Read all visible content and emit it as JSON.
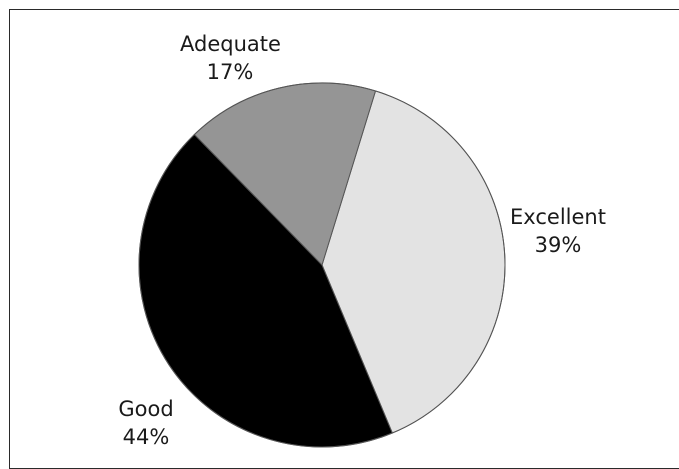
{
  "chart_data": {
    "type": "pie",
    "slices": [
      {
        "label": "Excellent",
        "value": 39,
        "value_label": "39%",
        "color": "#e3e3e3"
      },
      {
        "label": "Good",
        "value": 44,
        "value_label": "44%",
        "color": "#000000"
      },
      {
        "label": "Adequate",
        "value": 17,
        "value_label": "17%",
        "color": "#959595"
      }
    ],
    "start_angle_deg": 17,
    "direction": "clockwise",
    "border_color": "#555555"
  }
}
